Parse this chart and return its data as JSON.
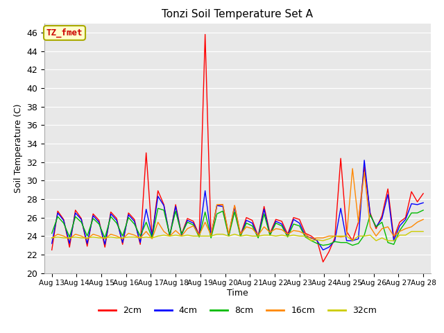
{
  "title": "Tonzi Soil Temperature Set A",
  "xlabel": "Time",
  "ylabel": "Soil Temperature (C)",
  "ylim": [
    20,
    47
  ],
  "yticks": [
    20,
    22,
    24,
    26,
    28,
    30,
    32,
    34,
    36,
    38,
    40,
    42,
    44,
    46
  ],
  "x_labels": [
    "Aug 13",
    "Aug 14",
    "Aug 15",
    "Aug 16",
    "Aug 17",
    "Aug 18",
    "Aug 19",
    "Aug 20",
    "Aug 21",
    "Aug 22",
    "Aug 23",
    "Aug 24",
    "Aug 25",
    "Aug 26",
    "Aug 27",
    "Aug 28"
  ],
  "legend_label": "TZ_fmet",
  "legend_bg": "#ffffcc",
  "legend_border": "#aaaa00",
  "legend_text_color": "#cc0000",
  "plot_bg_color": "#e8e8e8",
  "fig_bg_color": "#ffffff",
  "line_colors": {
    "2cm": "#ff0000",
    "4cm": "#0000ff",
    "8cm": "#00bb00",
    "16cm": "#ff8800",
    "32cm": "#cccc00"
  },
  "series": {
    "2cm": [
      22.5,
      26.7,
      25.8,
      22.8,
      26.8,
      25.9,
      22.9,
      26.4,
      25.7,
      22.8,
      26.6,
      25.9,
      23.1,
      26.5,
      25.8,
      23.1,
      33.0,
      24.0,
      28.9,
      27.4,
      24.0,
      27.4,
      24.2,
      25.9,
      25.6,
      24.1,
      45.8,
      24.0,
      27.3,
      27.4,
      24.1,
      27.3,
      24.1,
      26.0,
      25.7,
      24.0,
      27.2,
      24.3,
      25.8,
      25.6,
      24.2,
      26.0,
      25.8,
      24.3,
      24.0,
      23.5,
      21.2,
      22.3,
      23.8,
      32.4,
      24.5,
      23.5,
      25.5,
      31.5,
      26.5,
      24.8,
      26.2,
      29.1,
      23.8,
      25.5,
      26.0,
      28.8,
      27.7,
      28.6
    ],
    "4cm": [
      23.2,
      26.5,
      25.7,
      23.2,
      26.5,
      25.8,
      23.2,
      26.2,
      25.5,
      23.1,
      26.4,
      25.7,
      23.3,
      26.3,
      25.6,
      23.3,
      26.9,
      24.0,
      28.3,
      27.3,
      24.0,
      27.2,
      24.1,
      25.7,
      25.4,
      24.0,
      28.9,
      24.0,
      27.3,
      27.2,
      24.0,
      27.1,
      24.0,
      25.7,
      25.4,
      23.9,
      26.9,
      24.1,
      25.6,
      25.3,
      24.0,
      25.8,
      25.4,
      24.0,
      23.8,
      23.5,
      22.5,
      22.8,
      23.5,
      27.0,
      23.5,
      23.5,
      23.7,
      32.2,
      26.3,
      25.0,
      25.9,
      28.5,
      23.5,
      25.1,
      25.8,
      27.5,
      27.4,
      27.6
    ],
    "8cm": [
      24.3,
      26.1,
      25.4,
      23.9,
      26.1,
      25.5,
      24.0,
      25.9,
      25.3,
      23.8,
      26.1,
      25.4,
      24.0,
      26.0,
      25.3,
      24.0,
      25.5,
      23.8,
      27.0,
      26.8,
      24.1,
      26.7,
      24.2,
      25.5,
      25.2,
      23.9,
      26.6,
      23.8,
      26.4,
      26.7,
      24.0,
      26.6,
      24.0,
      25.4,
      25.1,
      23.8,
      26.4,
      24.1,
      25.4,
      25.1,
      23.9,
      25.3,
      25.1,
      23.9,
      23.5,
      23.2,
      23.0,
      23.1,
      23.4,
      23.3,
      23.3,
      23.0,
      23.2,
      24.1,
      26.3,
      25.0,
      25.5,
      23.3,
      23.1,
      24.6,
      25.5,
      26.5,
      26.5,
      26.8
    ],
    "16cm": [
      23.8,
      24.2,
      24.0,
      23.7,
      24.2,
      24.0,
      23.7,
      24.2,
      24.0,
      23.7,
      24.2,
      24.0,
      23.7,
      24.3,
      24.1,
      23.8,
      24.5,
      23.7,
      25.5,
      24.5,
      24.0,
      24.6,
      24.0,
      24.8,
      25.1,
      24.1,
      25.5,
      24.1,
      27.4,
      27.4,
      24.2,
      27.3,
      24.2,
      25.0,
      24.8,
      24.1,
      25.0,
      24.4,
      24.8,
      24.7,
      24.2,
      24.6,
      24.5,
      24.2,
      23.7,
      23.8,
      23.8,
      24.0,
      24.0,
      23.9,
      24.0,
      31.3,
      25.5,
      30.9,
      25.0,
      24.0,
      24.8,
      25.0,
      24.0,
      24.5,
      24.8,
      25.0,
      25.5,
      25.8
    ],
    "32cm": [
      23.8,
      23.9,
      23.8,
      23.8,
      23.9,
      23.8,
      23.8,
      23.9,
      23.8,
      23.8,
      23.9,
      23.8,
      23.8,
      23.9,
      23.9,
      23.8,
      23.9,
      23.8,
      24.0,
      24.1,
      24.0,
      24.1,
      24.0,
      24.1,
      24.0,
      24.0,
      24.0,
      24.0,
      24.2,
      24.2,
      24.0,
      24.2,
      24.0,
      24.1,
      24.0,
      24.0,
      24.1,
      24.1,
      24.0,
      24.1,
      24.0,
      24.1,
      24.0,
      24.0,
      23.5,
      23.6,
      23.5,
      23.7,
      24.0,
      24.0,
      24.0,
      23.5,
      24.0,
      24.0,
      24.1,
      23.5,
      23.8,
      23.5,
      23.5,
      24.1,
      24.1,
      24.5,
      24.5,
      24.5
    ]
  }
}
